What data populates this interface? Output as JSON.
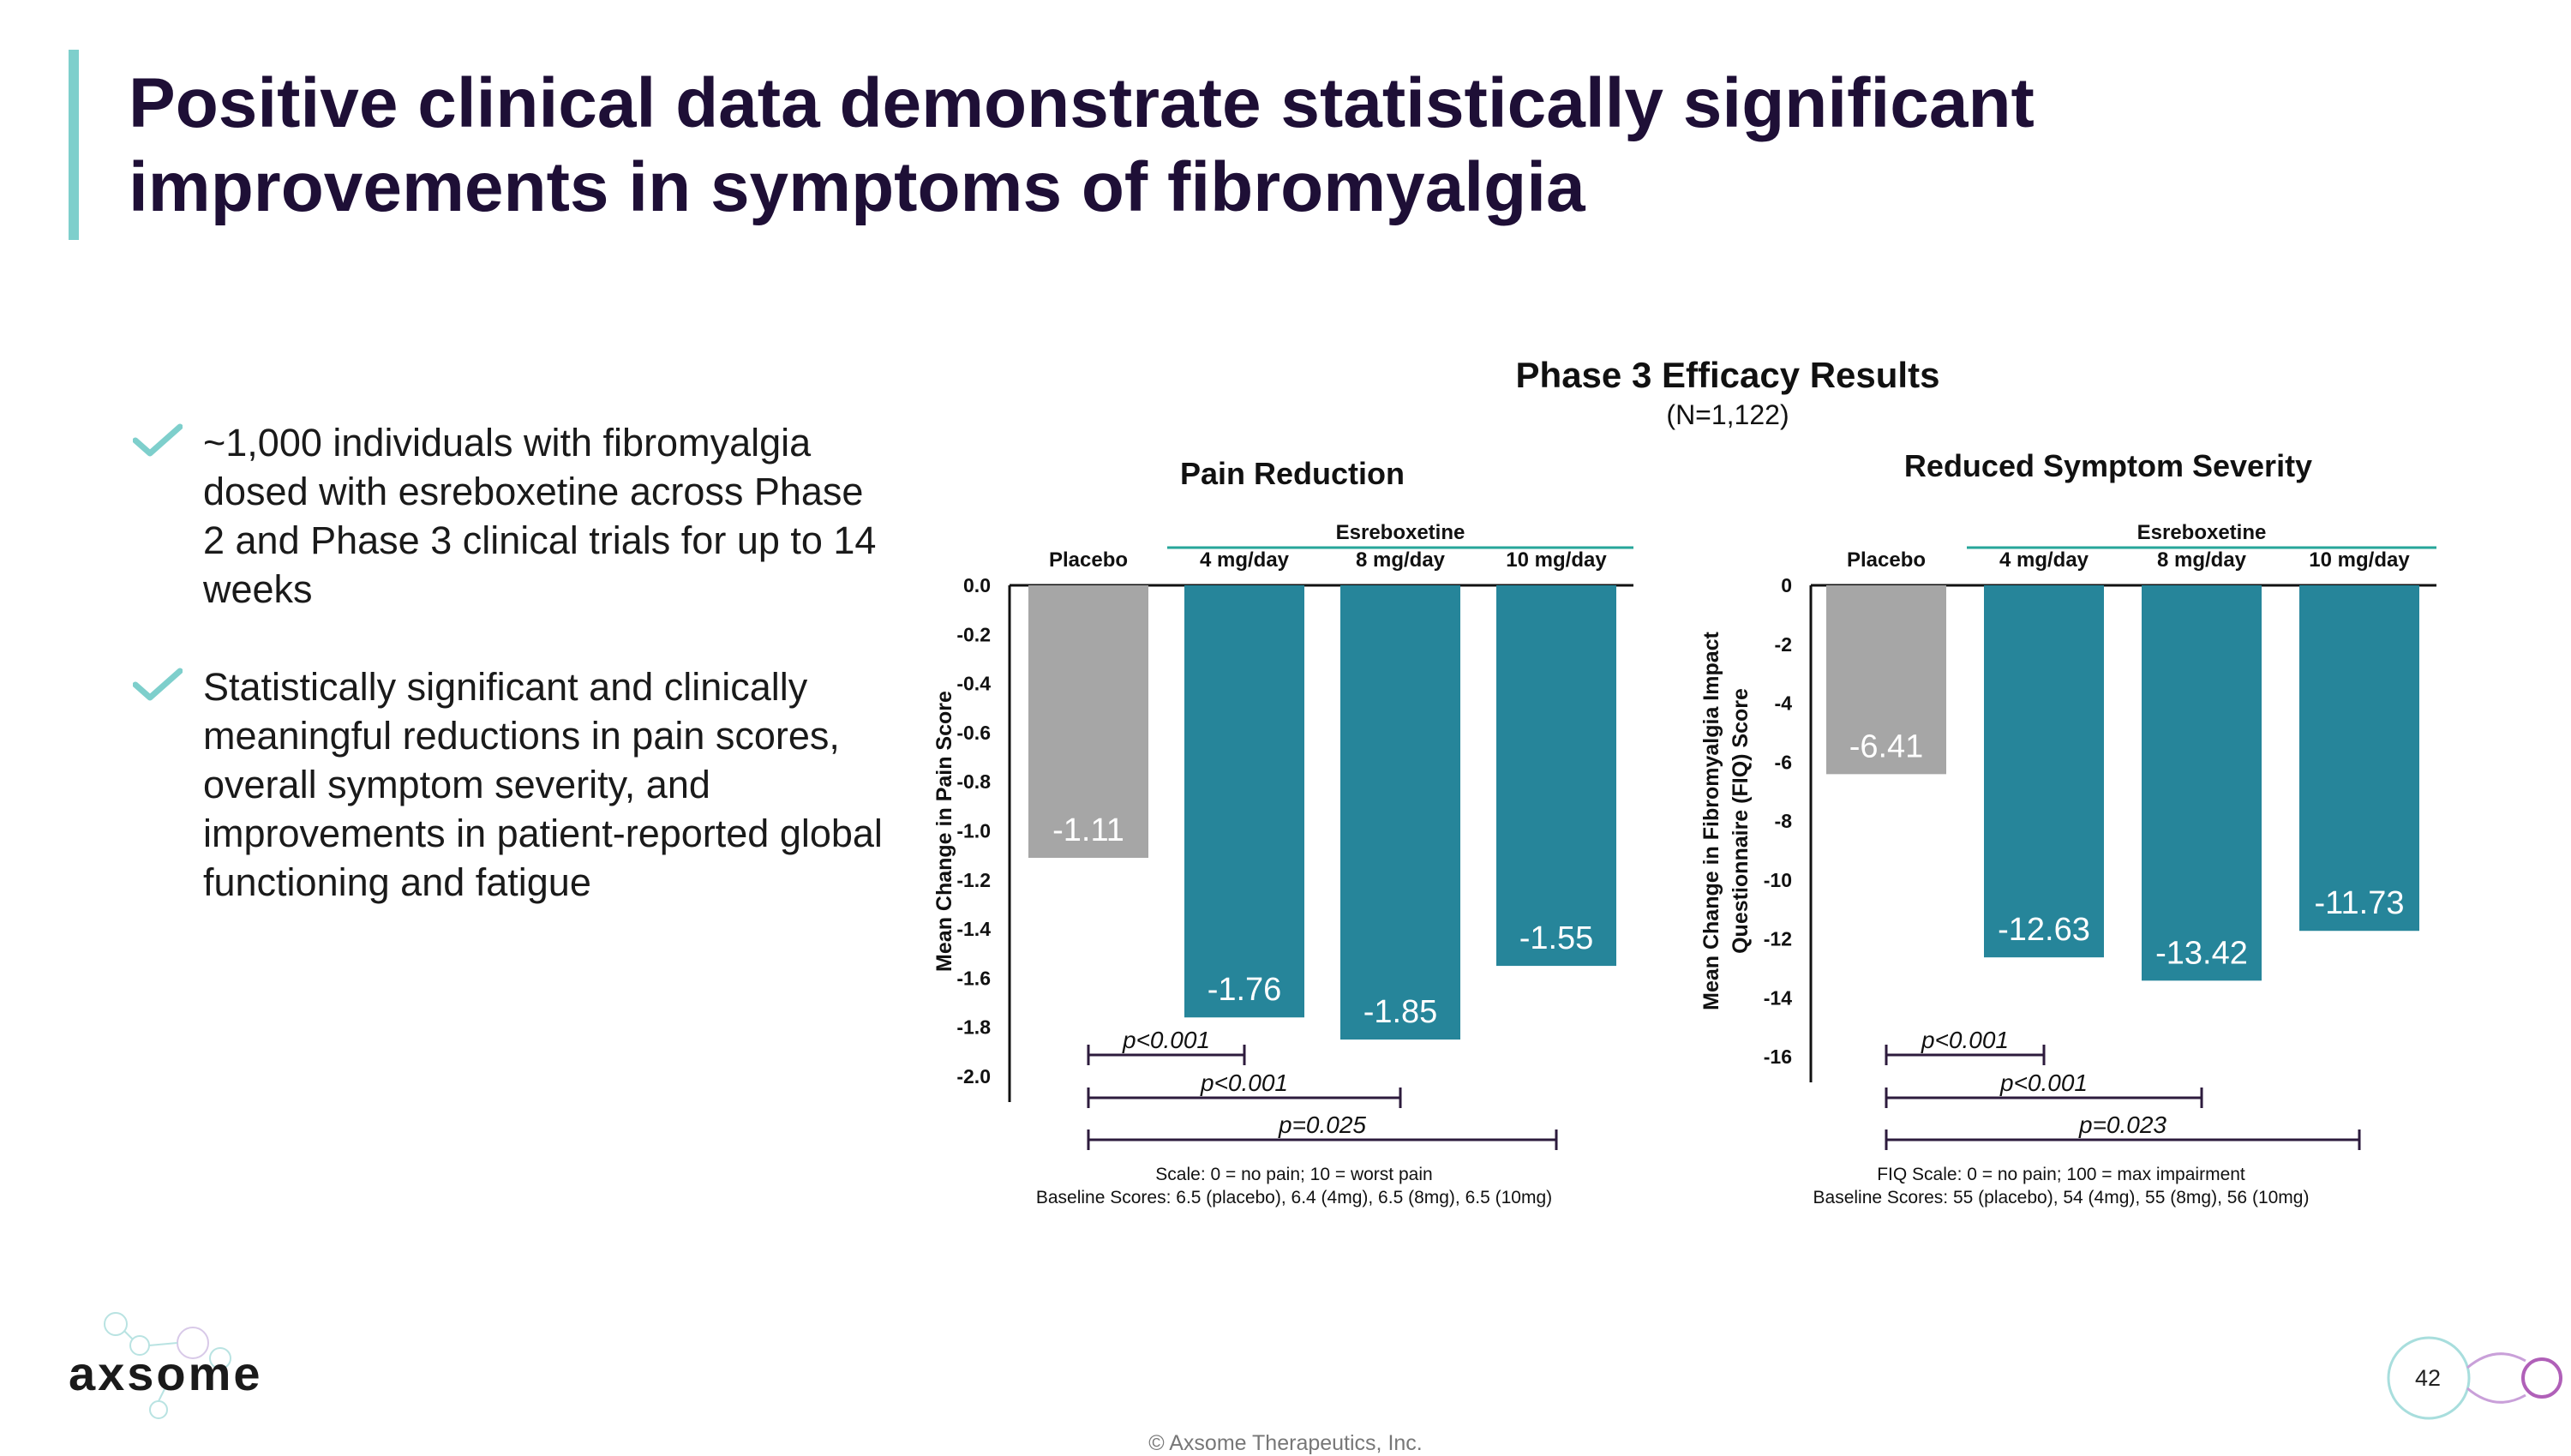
{
  "title": "Positive clinical data demonstrate statistically significant improvements in symptoms of fibromyalgia",
  "bullets": [
    "~1,000 individuals with fibromyalgia dosed with esreboxetine across Phase 2 and Phase 3 clinical trials for up to 14 weeks",
    "Statistically significant and clinically meaningful reductions in pain scores, overall symptom severity, and improvements in patient-reported global functioning and fatigue"
  ],
  "figure": {
    "title": "Phase 3 Efficacy Results",
    "subtitle": "(N=1,122)"
  },
  "colors": {
    "placebo": "#a6a6a6",
    "active": "#26859a",
    "esreboxetine_line": "#26a69a",
    "title": "#1e0f36",
    "accent": "#7ecfcc",
    "bracket": "#2d1b3d"
  },
  "chart_data": [
    {
      "type": "bar",
      "title": "Pain Reduction",
      "group_label": "Esreboxetine",
      "categories": [
        "Placebo",
        "4 mg/day",
        "8 mg/day",
        "10 mg/day"
      ],
      "values": [
        -1.11,
        -1.76,
        -1.85,
        -1.55
      ],
      "value_labels": [
        "-1.11",
        "-1.76",
        "-1.85",
        "-1.55"
      ],
      "ylabel": "Mean Change in Pain Score",
      "ylim": [
        -2.0,
        0
      ],
      "yticks": [
        0,
        -0.2,
        -0.4,
        -0.6,
        -0.8,
        -1.0,
        -1.2,
        -1.4,
        -1.6,
        -1.8,
        -2.0
      ],
      "ytick_labels": [
        "0.0",
        "-0.2",
        "-0.4",
        "-0.6",
        "-0.8",
        "-1.0",
        "-1.2",
        "-1.4",
        "-1.6",
        "-1.8",
        "-2.0"
      ],
      "comparisons": [
        {
          "to": 1,
          "label": "p<0.001"
        },
        {
          "to": 2,
          "label": "p<0.001"
        },
        {
          "to": 3,
          "label": "p=0.025"
        }
      ],
      "notes": [
        "Scale: 0 = no pain; 10 = worst pain",
        "Baseline Scores: 6.5 (placebo), 6.4 (4mg), 6.5 (8mg), 6.5 (10mg)"
      ]
    },
    {
      "type": "bar",
      "title": "Reduced Symptom Severity",
      "group_label": "Esreboxetine",
      "categories": [
        "Placebo",
        "4 mg/day",
        "8 mg/day",
        "10 mg/day"
      ],
      "values": [
        -6.41,
        -12.63,
        -13.42,
        -11.73
      ],
      "value_labels": [
        "-6.41",
        "-12.63",
        "-13.42",
        "-11.73"
      ],
      "ylabel": [
        "Mean Change in Fibromyalgia Impact",
        "Questionnaire (FIQ) Score"
      ],
      "ylim": [
        -16,
        0
      ],
      "yticks": [
        0,
        -2,
        -4,
        -6,
        -8,
        -10,
        -12,
        -14,
        -16
      ],
      "ytick_labels": [
        "0",
        "-2",
        "-4",
        "-6",
        "-8",
        "-10",
        "-12",
        "-14",
        "-16"
      ],
      "comparisons": [
        {
          "to": 1,
          "label": "p<0.001"
        },
        {
          "to": 2,
          "label": "p<0.001"
        },
        {
          "to": 3,
          "label": "p=0.023"
        }
      ],
      "notes": [
        "FIQ Scale: 0 = no pain; 100 = max impairment",
        "Baseline Scores: 55 (placebo), 54 (4mg), 55 (8mg), 56 (10mg)"
      ]
    }
  ],
  "logo": {
    "text": "axsome"
  },
  "footer": "© Axsome Therapeutics, Inc.",
  "page_number": "42"
}
